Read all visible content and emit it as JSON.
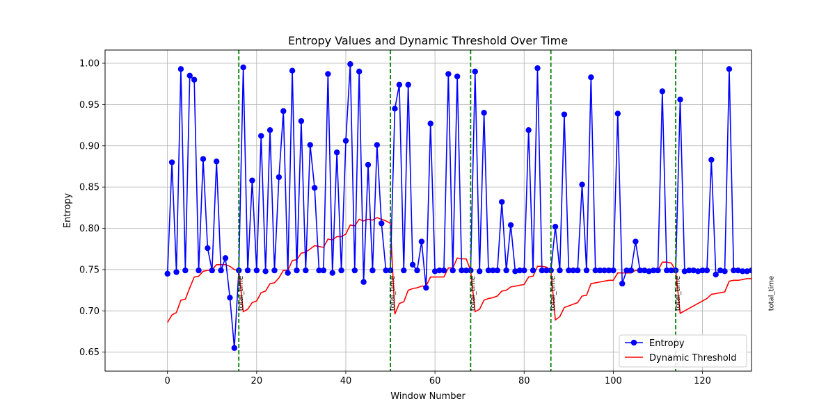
{
  "chart_data": {
    "type": "line",
    "title": "Entropy Values and Dynamic Threshold Over Time",
    "xlabel": "Window Number",
    "ylabel": "Entropy",
    "xlim": [
      -14,
      131
    ],
    "ylim": [
      0.627,
      1.016
    ],
    "xticks": [
      0,
      20,
      40,
      60,
      80,
      100,
      120
    ],
    "yticks": [
      0.65,
      0.7,
      0.75,
      0.8,
      0.85,
      0.9,
      0.95,
      1.0
    ],
    "grid": true,
    "legend_position": "lower-right",
    "colors": {
      "entropy": "#0000ff",
      "threshold": "#ff0000",
      "event": "#008000",
      "grid": "#b0b0b0"
    },
    "series": [
      {
        "name": "Entropy",
        "style": "line-marker",
        "x": [
          0,
          1,
          2,
          3,
          4,
          5,
          6,
          7,
          8,
          9,
          10,
          11,
          12,
          13,
          14,
          15,
          16,
          17,
          18,
          19,
          20,
          21,
          22,
          23,
          24,
          25,
          26,
          27,
          28,
          29,
          30,
          31,
          32,
          33,
          34,
          35,
          36,
          37,
          38,
          39,
          40,
          41,
          42,
          43,
          44,
          45,
          46,
          47,
          48,
          49,
          50,
          51,
          52,
          53,
          54,
          55,
          56,
          57,
          58,
          59,
          60,
          61,
          62,
          63,
          64,
          65,
          66,
          67,
          68,
          69,
          70,
          71,
          72,
          73,
          74,
          75,
          76,
          77,
          78,
          79,
          80,
          81,
          82,
          83,
          84,
          85,
          86,
          87,
          88,
          89,
          90,
          91,
          92,
          93,
          94,
          95,
          96,
          97,
          98,
          99,
          100,
          101,
          102,
          103,
          104,
          105,
          106,
          107,
          108,
          109,
          110,
          111,
          112,
          113,
          114,
          115,
          116,
          117,
          118,
          119,
          120,
          121,
          122,
          123,
          124,
          125,
          126,
          127,
          128,
          129,
          130,
          131
        ],
        "y": [
          0.745,
          0.88,
          0.747,
          0.993,
          0.749,
          0.985,
          0.98,
          0.749,
          0.884,
          0.776,
          0.749,
          0.881,
          0.749,
          0.764,
          0.716,
          0.655,
          0.749,
          0.995,
          0.749,
          0.858,
          0.749,
          0.912,
          0.748,
          0.919,
          0.749,
          0.862,
          0.942,
          0.746,
          0.991,
          0.749,
          0.93,
          0.749,
          0.901,
          0.849,
          0.749,
          0.749,
          0.987,
          0.746,
          0.892,
          0.749,
          0.906,
          0.999,
          0.749,
          0.99,
          0.735,
          0.877,
          0.749,
          0.901,
          0.806,
          0.749,
          0.749,
          0.945,
          0.974,
          0.749,
          0.974,
          0.756,
          0.749,
          0.784,
          0.728,
          0.927,
          0.748,
          0.749,
          0.749,
          0.987,
          0.749,
          0.984,
          0.749,
          0.749,
          0.749,
          0.99,
          0.748,
          0.94,
          0.749,
          0.749,
          0.749,
          0.832,
          0.749,
          0.804,
          0.748,
          0.749,
          0.749,
          0.919,
          0.749,
          0.994,
          0.749,
          0.749,
          0.749,
          0.802,
          0.749,
          0.938,
          0.749,
          0.749,
          0.749,
          0.853,
          0.749,
          0.983,
          0.749,
          0.749,
          0.749,
          0.749,
          0.749,
          0.939,
          0.733,
          0.749,
          0.749,
          0.784,
          0.749,
          0.749,
          0.748,
          0.749,
          0.749,
          0.966,
          0.749,
          0.749,
          0.749,
          0.956,
          0.748,
          0.749,
          0.749,
          0.748,
          0.749,
          0.749,
          0.883,
          0.744,
          0.749,
          0.748,
          0.993,
          0.749,
          0.749,
          0.748,
          0.748,
          0.749
        ]
      },
      {
        "name": "Dynamic Threshold",
        "style": "line",
        "x": [
          0,
          1,
          2,
          3,
          4,
          5,
          6,
          7,
          8,
          9,
          10,
          11,
          12,
          13,
          14,
          15,
          16,
          17,
          18,
          19,
          20,
          21,
          22,
          23,
          24,
          25,
          26,
          27,
          28,
          29,
          30,
          31,
          32,
          33,
          34,
          35,
          36,
          37,
          38,
          39,
          40,
          41,
          42,
          43,
          44,
          45,
          46,
          47,
          48,
          49,
          50,
          51,
          52,
          53,
          54,
          55,
          56,
          57,
          58,
          59,
          60,
          61,
          62,
          63,
          64,
          65,
          66,
          67,
          68,
          69,
          70,
          71,
          72,
          73,
          74,
          75,
          76,
          77,
          78,
          79,
          80,
          81,
          82,
          83,
          84,
          85,
          86,
          87,
          88,
          89,
          90,
          91,
          92,
          93,
          94,
          95,
          96,
          97,
          98,
          99,
          100,
          101,
          102,
          103,
          104,
          105,
          106,
          107,
          108,
          109,
          110,
          111,
          112,
          113,
          114,
          115,
          116,
          117,
          118,
          119,
          120,
          121,
          122,
          123,
          124,
          125,
          126,
          127,
          128,
          129,
          130,
          131
        ],
        "y": [
          0.686,
          0.695,
          0.698,
          0.713,
          0.714,
          0.728,
          0.741,
          0.742,
          0.748,
          0.749,
          0.75,
          0.756,
          0.756,
          0.756,
          0.754,
          0.75,
          0.749,
          0.699,
          0.702,
          0.71,
          0.712,
          0.722,
          0.724,
          0.733,
          0.734,
          0.74,
          0.749,
          0.749,
          0.761,
          0.762,
          0.77,
          0.771,
          0.775,
          0.779,
          0.778,
          0.777,
          0.787,
          0.786,
          0.79,
          0.79,
          0.793,
          0.804,
          0.803,
          0.811,
          0.809,
          0.811,
          0.81,
          0.813,
          0.811,
          0.809,
          0.806,
          0.696,
          0.709,
          0.711,
          0.725,
          0.727,
          0.728,
          0.73,
          0.73,
          0.741,
          0.741,
          0.741,
          0.741,
          0.752,
          0.752,
          0.764,
          0.763,
          0.763,
          0.749,
          0.699,
          0.702,
          0.713,
          0.715,
          0.716,
          0.718,
          0.724,
          0.725,
          0.729,
          0.73,
          0.731,
          0.732,
          0.741,
          0.742,
          0.754,
          0.754,
          0.753,
          0.749,
          0.689,
          0.693,
          0.704,
          0.706,
          0.708,
          0.71,
          0.718,
          0.719,
          0.733,
          0.734,
          0.735,
          0.736,
          0.737,
          0.737,
          0.746,
          0.746,
          0.746,
          0.746,
          0.749,
          0.749,
          0.749,
          0.749,
          0.749,
          0.749,
          0.759,
          0.759,
          0.758,
          0.749,
          0.697,
          0.7,
          0.703,
          0.706,
          0.709,
          0.712,
          0.715,
          0.72,
          0.721,
          0.722,
          0.723,
          0.736,
          0.737,
          0.737,
          0.738,
          0.739,
          0.739
        ]
      }
    ],
    "events": [
      {
        "x": 16,
        "label": "total_time"
      },
      {
        "x": 50,
        "label": "total_time"
      },
      {
        "x": 68,
        "label": "total_time"
      },
      {
        "x": 86,
        "label": "total_time"
      },
      {
        "x": 114,
        "label": "total_time"
      },
      {
        "x": 135,
        "label": "total_time"
      }
    ]
  }
}
